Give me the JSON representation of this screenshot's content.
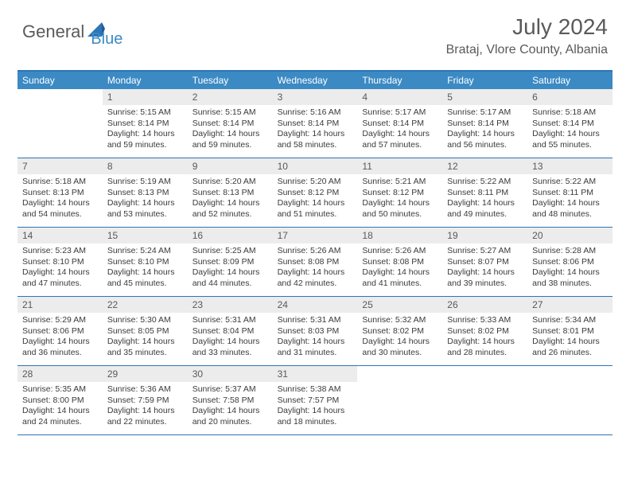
{
  "logo": {
    "part1": "General",
    "part2": "Blue"
  },
  "title": {
    "month_year": "July 2024",
    "location": "Brataj, Vlore County, Albania"
  },
  "colors": {
    "header_bar": "#3b8ac4",
    "border": "#2e75b6",
    "daynum_bg": "#ececec",
    "text_gray": "#5a5a5a",
    "text_dark": "#3a3a3a"
  },
  "day_headers": [
    "Sunday",
    "Monday",
    "Tuesday",
    "Wednesday",
    "Thursday",
    "Friday",
    "Saturday"
  ],
  "weeks": [
    [
      {
        "n": "",
        "sr": "",
        "ss": "",
        "dl": ""
      },
      {
        "n": "1",
        "sr": "Sunrise: 5:15 AM",
        "ss": "Sunset: 8:14 PM",
        "dl": "Daylight: 14 hours and 59 minutes."
      },
      {
        "n": "2",
        "sr": "Sunrise: 5:15 AM",
        "ss": "Sunset: 8:14 PM",
        "dl": "Daylight: 14 hours and 59 minutes."
      },
      {
        "n": "3",
        "sr": "Sunrise: 5:16 AM",
        "ss": "Sunset: 8:14 PM",
        "dl": "Daylight: 14 hours and 58 minutes."
      },
      {
        "n": "4",
        "sr": "Sunrise: 5:17 AM",
        "ss": "Sunset: 8:14 PM",
        "dl": "Daylight: 14 hours and 57 minutes."
      },
      {
        "n": "5",
        "sr": "Sunrise: 5:17 AM",
        "ss": "Sunset: 8:14 PM",
        "dl": "Daylight: 14 hours and 56 minutes."
      },
      {
        "n": "6",
        "sr": "Sunrise: 5:18 AM",
        "ss": "Sunset: 8:14 PM",
        "dl": "Daylight: 14 hours and 55 minutes."
      }
    ],
    [
      {
        "n": "7",
        "sr": "Sunrise: 5:18 AM",
        "ss": "Sunset: 8:13 PM",
        "dl": "Daylight: 14 hours and 54 minutes."
      },
      {
        "n": "8",
        "sr": "Sunrise: 5:19 AM",
        "ss": "Sunset: 8:13 PM",
        "dl": "Daylight: 14 hours and 53 minutes."
      },
      {
        "n": "9",
        "sr": "Sunrise: 5:20 AM",
        "ss": "Sunset: 8:13 PM",
        "dl": "Daylight: 14 hours and 52 minutes."
      },
      {
        "n": "10",
        "sr": "Sunrise: 5:20 AM",
        "ss": "Sunset: 8:12 PM",
        "dl": "Daylight: 14 hours and 51 minutes."
      },
      {
        "n": "11",
        "sr": "Sunrise: 5:21 AM",
        "ss": "Sunset: 8:12 PM",
        "dl": "Daylight: 14 hours and 50 minutes."
      },
      {
        "n": "12",
        "sr": "Sunrise: 5:22 AM",
        "ss": "Sunset: 8:11 PM",
        "dl": "Daylight: 14 hours and 49 minutes."
      },
      {
        "n": "13",
        "sr": "Sunrise: 5:22 AM",
        "ss": "Sunset: 8:11 PM",
        "dl": "Daylight: 14 hours and 48 minutes."
      }
    ],
    [
      {
        "n": "14",
        "sr": "Sunrise: 5:23 AM",
        "ss": "Sunset: 8:10 PM",
        "dl": "Daylight: 14 hours and 47 minutes."
      },
      {
        "n": "15",
        "sr": "Sunrise: 5:24 AM",
        "ss": "Sunset: 8:10 PM",
        "dl": "Daylight: 14 hours and 45 minutes."
      },
      {
        "n": "16",
        "sr": "Sunrise: 5:25 AM",
        "ss": "Sunset: 8:09 PM",
        "dl": "Daylight: 14 hours and 44 minutes."
      },
      {
        "n": "17",
        "sr": "Sunrise: 5:26 AM",
        "ss": "Sunset: 8:08 PM",
        "dl": "Daylight: 14 hours and 42 minutes."
      },
      {
        "n": "18",
        "sr": "Sunrise: 5:26 AM",
        "ss": "Sunset: 8:08 PM",
        "dl": "Daylight: 14 hours and 41 minutes."
      },
      {
        "n": "19",
        "sr": "Sunrise: 5:27 AM",
        "ss": "Sunset: 8:07 PM",
        "dl": "Daylight: 14 hours and 39 minutes."
      },
      {
        "n": "20",
        "sr": "Sunrise: 5:28 AM",
        "ss": "Sunset: 8:06 PM",
        "dl": "Daylight: 14 hours and 38 minutes."
      }
    ],
    [
      {
        "n": "21",
        "sr": "Sunrise: 5:29 AM",
        "ss": "Sunset: 8:06 PM",
        "dl": "Daylight: 14 hours and 36 minutes."
      },
      {
        "n": "22",
        "sr": "Sunrise: 5:30 AM",
        "ss": "Sunset: 8:05 PM",
        "dl": "Daylight: 14 hours and 35 minutes."
      },
      {
        "n": "23",
        "sr": "Sunrise: 5:31 AM",
        "ss": "Sunset: 8:04 PM",
        "dl": "Daylight: 14 hours and 33 minutes."
      },
      {
        "n": "24",
        "sr": "Sunrise: 5:31 AM",
        "ss": "Sunset: 8:03 PM",
        "dl": "Daylight: 14 hours and 31 minutes."
      },
      {
        "n": "25",
        "sr": "Sunrise: 5:32 AM",
        "ss": "Sunset: 8:02 PM",
        "dl": "Daylight: 14 hours and 30 minutes."
      },
      {
        "n": "26",
        "sr": "Sunrise: 5:33 AM",
        "ss": "Sunset: 8:02 PM",
        "dl": "Daylight: 14 hours and 28 minutes."
      },
      {
        "n": "27",
        "sr": "Sunrise: 5:34 AM",
        "ss": "Sunset: 8:01 PM",
        "dl": "Daylight: 14 hours and 26 minutes."
      }
    ],
    [
      {
        "n": "28",
        "sr": "Sunrise: 5:35 AM",
        "ss": "Sunset: 8:00 PM",
        "dl": "Daylight: 14 hours and 24 minutes."
      },
      {
        "n": "29",
        "sr": "Sunrise: 5:36 AM",
        "ss": "Sunset: 7:59 PM",
        "dl": "Daylight: 14 hours and 22 minutes."
      },
      {
        "n": "30",
        "sr": "Sunrise: 5:37 AM",
        "ss": "Sunset: 7:58 PM",
        "dl": "Daylight: 14 hours and 20 minutes."
      },
      {
        "n": "31",
        "sr": "Sunrise: 5:38 AM",
        "ss": "Sunset: 7:57 PM",
        "dl": "Daylight: 14 hours and 18 minutes."
      },
      {
        "n": "",
        "sr": "",
        "ss": "",
        "dl": ""
      },
      {
        "n": "",
        "sr": "",
        "ss": "",
        "dl": ""
      },
      {
        "n": "",
        "sr": "",
        "ss": "",
        "dl": ""
      }
    ]
  ]
}
